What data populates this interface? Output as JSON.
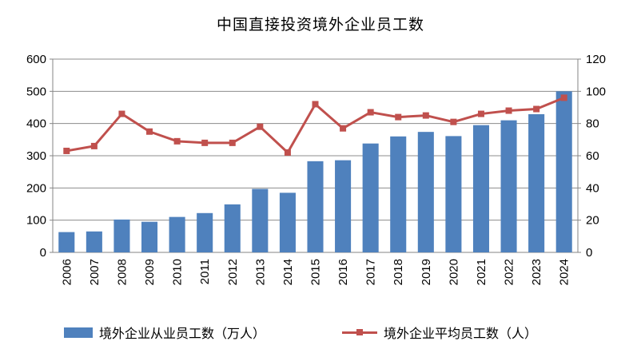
{
  "chart_data": {
    "type": "bar+line",
    "title": "中国直接投资境外企业员工数",
    "categories": [
      "2006",
      "2007",
      "2008",
      "2009",
      "2010",
      "2011",
      "2012",
      "2013",
      "2014",
      "2015",
      "2016",
      "2017",
      "2018",
      "2019",
      "2020",
      "2021",
      "2022",
      "2023",
      "2024"
    ],
    "series": [
      {
        "name": "境外企业从业员工数（万人）",
        "type": "bar",
        "axis": "left",
        "color": "#4f81bd",
        "values": [
          63,
          65,
          102,
          95,
          110,
          122,
          149,
          197,
          185,
          283,
          286,
          338,
          360,
          374,
          361,
          395,
          410,
          429,
          500
        ]
      },
      {
        "name": "境外企业平均员工数（人）",
        "type": "line",
        "axis": "right",
        "color": "#c0504d",
        "values": [
          63,
          66,
          86,
          75,
          69,
          68,
          68,
          78,
          62,
          92,
          77,
          87,
          84,
          85,
          81,
          86,
          88,
          89,
          96
        ]
      }
    ],
    "y_left": {
      "ylim": [
        0,
        600
      ],
      "ticks": [
        0,
        100,
        200,
        300,
        400,
        500,
        600
      ]
    },
    "y_right": {
      "ylim": [
        0,
        120
      ],
      "ticks": [
        0,
        20,
        40,
        60,
        80,
        100,
        120
      ]
    },
    "grid": true,
    "legend_position": "bottom"
  }
}
